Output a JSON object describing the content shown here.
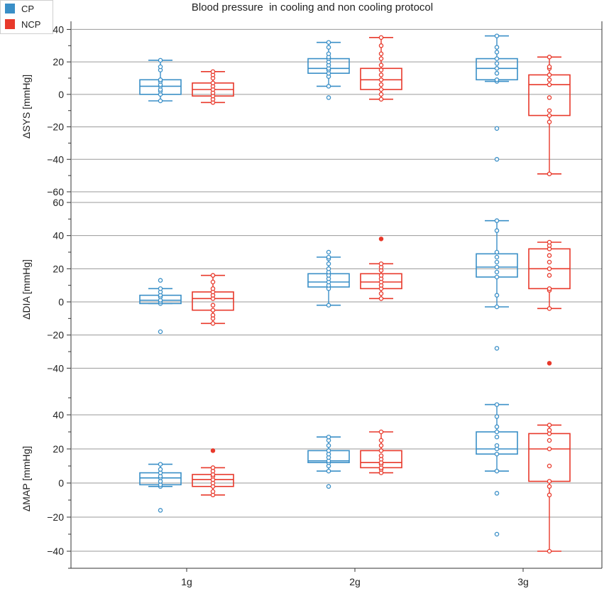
{
  "chart_data": {
    "type": "box",
    "title": "Blood pressure  in cooling and non cooling protocol",
    "categories": [
      "1g",
      "2g",
      "3g"
    ],
    "legend": [
      {
        "name": "CP",
        "color": "#3a8fc7"
      },
      {
        "name": "NCP",
        "color": "#e8392b"
      }
    ],
    "panels": [
      {
        "ylabel": "ΔSYS [mmHg]",
        "ylim": [
          -60,
          45
        ],
        "yticks": [
          -60,
          -40,
          -20,
          0,
          20,
          40
        ],
        "tick_labels": [
          "−60",
          "−40",
          "−20",
          "0",
          "20",
          "40"
        ],
        "boxes": [
          {
            "group": "CP",
            "category": "1g",
            "whisker_low": -4,
            "q1": 0,
            "median": 5,
            "q3": 9,
            "whisker_high": 21,
            "points": [
              -4,
              0,
              2,
              3,
              5,
              6,
              8,
              9,
              15,
              17,
              21
            ]
          },
          {
            "group": "NCP",
            "category": "1g",
            "whisker_low": -5,
            "q1": -1,
            "median": 3,
            "q3": 7,
            "whisker_high": 14,
            "points": [
              -5,
              -3,
              -1,
              1,
              3,
              5,
              7,
              10,
              12,
              14
            ]
          },
          {
            "group": "CP",
            "category": "2g",
            "whisker_low": 5,
            "q1": 13,
            "median": 16,
            "q3": 22,
            "whisker_high": 32,
            "points": [
              -2,
              5,
              11,
              13,
              15,
              16,
              18,
              20,
              22,
              23,
              25,
              29,
              32
            ]
          },
          {
            "group": "NCP",
            "category": "2g",
            "whisker_low": -3,
            "q1": 3,
            "median": 9,
            "q3": 16,
            "whisker_high": 35,
            "points": [
              -3,
              0,
              3,
              6,
              9,
              12,
              15,
              18,
              22,
              25,
              30,
              35
            ]
          },
          {
            "group": "CP",
            "category": "3g",
            "whisker_low": 8,
            "q1": 9,
            "median": 16,
            "q3": 22,
            "whisker_high": 36,
            "points": [
              -40,
              -21,
              8,
              9,
              13,
              16,
              19,
              22,
              26,
              29,
              36
            ]
          },
          {
            "group": "NCP",
            "category": "3g",
            "whisker_low": -49,
            "q1": -13,
            "median": 6,
            "q3": 12,
            "whisker_high": 23,
            "points": [
              -49,
              -17,
              -13,
              -10,
              -2,
              6,
              9,
              12,
              16,
              17,
              23
            ]
          }
        ]
      },
      {
        "ylabel": "ΔDIA [mmHg]",
        "ylim": [
          -45,
          60
        ],
        "yticks": [
          -40,
          -20,
          0,
          20,
          40,
          60
        ],
        "tick_labels": [
          "−40",
          "−20",
          "0",
          "20",
          "40",
          "60"
        ],
        "boxes": [
          {
            "group": "CP",
            "category": "1g",
            "whisker_low": -1,
            "q1": -1,
            "median": 1,
            "q3": 4,
            "whisker_high": 8,
            "points": [
              -18,
              -1,
              0,
              1,
              3,
              4,
              6,
              8,
              13
            ]
          },
          {
            "group": "NCP",
            "category": "1g",
            "whisker_low": -13,
            "q1": -5,
            "median": 2,
            "q3": 6,
            "whisker_high": 16,
            "points": [
              -13,
              -10,
              -8,
              -5,
              -2,
              2,
              4,
              6,
              8,
              12,
              16
            ]
          },
          {
            "group": "CP",
            "category": "2g",
            "whisker_low": -2,
            "q1": 9,
            "median": 12,
            "q3": 17,
            "whisker_high": 27,
            "points": [
              -2,
              8,
              10,
              12,
              14,
              16,
              18,
              20,
              23,
              26,
              27,
              30
            ]
          },
          {
            "group": "NCP",
            "category": "2g",
            "whisker_low": 2,
            "q1": 8,
            "median": 12,
            "q3": 17,
            "whisker_high": 23,
            "points": [
              2,
              5,
              8,
              10,
              12,
              14,
              16,
              19,
              21,
              23,
              38
            ]
          },
          {
            "group": "CP",
            "category": "3g",
            "whisker_low": -3,
            "q1": 15,
            "median": 21,
            "q3": 29,
            "whisker_high": 49,
            "points": [
              -28,
              -3,
              4,
              15,
              18,
              21,
              24,
              27,
              30,
              43,
              49
            ]
          },
          {
            "group": "NCP",
            "category": "3g",
            "whisker_low": -4,
            "q1": 8,
            "median": 20,
            "q3": 32,
            "whisker_high": 36,
            "points": [
              -37,
              -4,
              7,
              8,
              16,
              20,
              24,
              28,
              32,
              34,
              36
            ]
          }
        ]
      },
      {
        "ylabel": "ΔMAP [mmHg]",
        "ylim": [
          -50,
          55
        ],
        "yticks": [
          -40,
          -20,
          0,
          20,
          40
        ],
        "tick_labels": [
          "−40",
          "−20",
          "0",
          "20",
          "40"
        ],
        "boxes": [
          {
            "group": "CP",
            "category": "1g",
            "whisker_low": -2,
            "q1": -1,
            "median": 3,
            "q3": 6,
            "whisker_high": 11,
            "points": [
              -16,
              -2,
              -1,
              1,
              3,
              4,
              6,
              8,
              11
            ]
          },
          {
            "group": "NCP",
            "category": "1g",
            "whisker_low": -7,
            "q1": -2,
            "median": 2,
            "q3": 5,
            "whisker_high": 9,
            "points": [
              -7,
              -5,
              -2,
              0,
              2,
              4,
              5,
              7,
              9,
              19
            ]
          },
          {
            "group": "CP",
            "category": "2g",
            "whisker_low": 7,
            "q1": 12,
            "median": 13,
            "q3": 19,
            "whisker_high": 27,
            "points": [
              -2,
              7,
              10,
              12,
              13,
              15,
              17,
              19,
              22,
              25,
              27
            ]
          },
          {
            "group": "NCP",
            "category": "2g",
            "whisker_low": 6,
            "q1": 9,
            "median": 12,
            "q3": 19,
            "whisker_high": 30,
            "points": [
              6,
              8,
              9,
              11,
              12,
              14,
              16,
              19,
              22,
              25,
              30
            ]
          },
          {
            "group": "CP",
            "category": "3g",
            "whisker_low": 7,
            "q1": 17,
            "median": 20,
            "q3": 30,
            "whisker_high": 46,
            "points": [
              -30,
              -6,
              7,
              17,
              20,
              22,
              27,
              30,
              33,
              39,
              46
            ]
          },
          {
            "group": "NCP",
            "category": "3g",
            "whisker_low": -40,
            "q1": 1,
            "median": 20,
            "q3": 29,
            "whisker_high": 34,
            "points": [
              -40,
              -7,
              -2,
              1,
              10,
              20,
              25,
              29,
              31,
              34
            ]
          }
        ]
      }
    ]
  }
}
